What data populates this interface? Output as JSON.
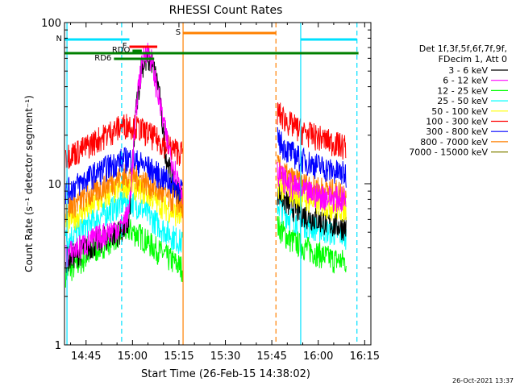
{
  "chart_data": {
    "type": "line",
    "title": "RHESSI Count Rates",
    "xlabel": "Start Time (26-Feb-15 14:38:02)",
    "ylabel": "Count Rate (s⁻¹ detector segment⁻¹)",
    "y_scale": "log",
    "ylim": [
      1,
      100
    ],
    "xlim": [
      "14:38:02",
      "16:17:00"
    ],
    "x_ticks": [
      "14:45",
      "15:00",
      "15:15",
      "15:30",
      "15:45",
      "16:00",
      "16:15"
    ],
    "y_ticks": [
      "1",
      "10",
      "100"
    ],
    "grid": false,
    "legend_position": "right",
    "legend_header": [
      "Det 1f,3f,5f,6f,7f,9f,",
      "FDecim 1, Att 0"
    ],
    "series": [
      {
        "name": "3 - 6 keV",
        "color": "#000000",
        "pre": [
          [
            14.64,
            3.4
          ],
          [
            14.72,
            3.8
          ],
          [
            14.8,
            4.3
          ],
          [
            14.88,
            4.8
          ],
          [
            14.94,
            5.1
          ],
          [
            14.98,
            5.6
          ],
          [
            15.02,
            30
          ],
          [
            15.05,
            55
          ],
          [
            15.1,
            60
          ],
          [
            15.14,
            40
          ],
          [
            15.18,
            15
          ],
          [
            15.22,
            10
          ],
          [
            15.27,
            8
          ]
        ],
        "post": [
          [
            15.78,
            9
          ],
          [
            15.84,
            7.5
          ],
          [
            15.92,
            6.5
          ],
          [
            16.0,
            6
          ],
          [
            16.08,
            5.6
          ],
          [
            16.15,
            5.4
          ]
        ]
      },
      {
        "name": "6 - 12 keV",
        "color": "#ff00ff",
        "pre": [
          [
            14.64,
            3.6
          ],
          [
            14.72,
            4.1
          ],
          [
            14.8,
            4.6
          ],
          [
            14.88,
            5.1
          ],
          [
            14.94,
            5.5
          ],
          [
            14.98,
            6.5
          ],
          [
            15.03,
            40
          ],
          [
            15.07,
            70
          ],
          [
            15.1,
            60
          ],
          [
            15.14,
            35
          ],
          [
            15.18,
            20
          ],
          [
            15.22,
            13
          ],
          [
            15.27,
            9
          ]
        ],
        "post": [
          [
            15.78,
            12
          ],
          [
            15.84,
            10
          ],
          [
            15.92,
            9
          ],
          [
            16.0,
            8.5
          ],
          [
            16.08,
            8.2
          ],
          [
            16.15,
            8
          ]
        ]
      },
      {
        "name": "12 - 25 keV",
        "color": "#00ff00",
        "pre": [
          [
            14.64,
            2.8
          ],
          [
            14.72,
            3.3
          ],
          [
            14.8,
            3.9
          ],
          [
            14.88,
            4.5
          ],
          [
            14.94,
            5
          ],
          [
            14.98,
            5.2
          ],
          [
            15.04,
            4.8
          ],
          [
            15.1,
            4.2
          ],
          [
            15.16,
            3.7
          ],
          [
            15.22,
            3.3
          ],
          [
            15.27,
            3
          ]
        ],
        "post": [
          [
            15.78,
            5.5
          ],
          [
            15.84,
            4.6
          ],
          [
            15.92,
            4.1
          ],
          [
            16.0,
            3.7
          ],
          [
            16.08,
            3.4
          ],
          [
            16.15,
            3.3
          ]
        ]
      },
      {
        "name": "25 - 50 keV",
        "color": "#00ffff",
        "pre": [
          [
            14.64,
            4.5
          ],
          [
            14.72,
            5.2
          ],
          [
            14.8,
            6
          ],
          [
            14.88,
            6.9
          ],
          [
            14.94,
            7.6
          ],
          [
            14.98,
            7.9
          ],
          [
            15.04,
            7.2
          ],
          [
            15.1,
            6.2
          ],
          [
            15.16,
            5.3
          ],
          [
            15.22,
            4.7
          ],
          [
            15.27,
            4.3
          ]
        ],
        "post": [
          [
            15.78,
            7.5
          ],
          [
            15.84,
            6.3
          ],
          [
            15.92,
            5.7
          ],
          [
            16.0,
            5.3
          ],
          [
            16.08,
            5
          ],
          [
            16.15,
            4.8
          ]
        ]
      },
      {
        "name": "50 - 100 keV",
        "color": "#ffff00",
        "pre": [
          [
            14.64,
            5.8
          ],
          [
            14.72,
            6.6
          ],
          [
            14.8,
            7.6
          ],
          [
            14.88,
            8.7
          ],
          [
            14.94,
            9.6
          ],
          [
            14.98,
            10
          ],
          [
            15.04,
            9.3
          ],
          [
            15.1,
            8.4
          ],
          [
            15.16,
            7.4
          ],
          [
            15.22,
            6.7
          ],
          [
            15.27,
            6.2
          ]
        ],
        "post": [
          [
            15.78,
            10
          ],
          [
            15.84,
            9
          ],
          [
            15.92,
            8.2
          ],
          [
            16.0,
            7.6
          ],
          [
            16.08,
            7.2
          ],
          [
            16.15,
            7
          ]
        ]
      },
      {
        "name": "100 - 300 keV",
        "color": "#ff0000",
        "pre": [
          [
            14.64,
            15
          ],
          [
            14.72,
            16.2
          ],
          [
            14.8,
            18.5
          ],
          [
            14.88,
            21
          ],
          [
            14.94,
            22.8
          ],
          [
            14.98,
            23.5
          ],
          [
            15.04,
            22
          ],
          [
            15.1,
            20
          ],
          [
            15.16,
            18
          ],
          [
            15.22,
            16.5
          ],
          [
            15.27,
            15.5
          ]
        ],
        "post": [
          [
            15.78,
            28
          ],
          [
            15.84,
            24
          ],
          [
            15.92,
            21
          ],
          [
            16.0,
            19.5
          ],
          [
            16.08,
            18
          ],
          [
            16.15,
            17
          ]
        ]
      },
      {
        "name": "300 - 800 keV",
        "color": "#0000ff",
        "pre": [
          [
            14.64,
            9
          ],
          [
            14.72,
            10.2
          ],
          [
            14.8,
            11.6
          ],
          [
            14.88,
            13
          ],
          [
            14.94,
            14
          ],
          [
            14.98,
            14.4
          ],
          [
            15.04,
            13.5
          ],
          [
            15.1,
            12.3
          ],
          [
            15.16,
            11
          ],
          [
            15.22,
            10
          ],
          [
            15.27,
            9.3
          ]
        ],
        "post": [
          [
            15.78,
            19
          ],
          [
            15.84,
            16
          ],
          [
            15.92,
            14
          ],
          [
            16.0,
            13
          ],
          [
            16.08,
            12
          ],
          [
            16.15,
            11.5
          ]
        ]
      },
      {
        "name": "800 - 7000 keV",
        "color": "#ff8000",
        "pre": [
          [
            14.64,
            7
          ],
          [
            14.72,
            7.9
          ],
          [
            14.8,
            9
          ],
          [
            14.88,
            10.2
          ],
          [
            14.94,
            11
          ],
          [
            14.98,
            11.4
          ],
          [
            15.04,
            10.8
          ],
          [
            15.1,
            9.8
          ],
          [
            15.16,
            8.7
          ],
          [
            15.22,
            7.9
          ],
          [
            15.27,
            7.4
          ]
        ],
        "post": [
          [
            15.78,
            13
          ],
          [
            15.84,
            11
          ],
          [
            15.92,
            10
          ],
          [
            16.0,
            9.5
          ],
          [
            16.08,
            9
          ],
          [
            16.15,
            8.8
          ]
        ]
      },
      {
        "name": "7000 - 15000 keV",
        "color": "#808000",
        "pre": [],
        "post": []
      }
    ],
    "gaps": [
      [
        "15:16",
        "15:46"
      ]
    ],
    "vertical_markers": [
      {
        "time": "14:38:50",
        "color": "#00e0ff",
        "style": "solid"
      },
      {
        "time": "14:56:30",
        "color": "#00e0ff",
        "style": "dashed"
      },
      {
        "time": "15:16:20",
        "color": "#ff8000",
        "style": "solid"
      },
      {
        "time": "15:46:20",
        "color": "#ff8000",
        "style": "dashed"
      },
      {
        "time": "15:54:20",
        "color": "#00e0ff",
        "style": "solid"
      },
      {
        "time": "16:12:30",
        "color": "#00e0ff",
        "style": "dashed"
      }
    ],
    "flag_bars": [
      {
        "label": "N",
        "color": "#00e0ff",
        "segments": [
          [
            "14:38:02",
            "14:59:00"
          ],
          [
            "15:54:20",
            "16:12:30"
          ]
        ]
      },
      {
        "label": "S",
        "color": "#ff8000",
        "segments": [
          [
            "15:16:20",
            "15:46:20"
          ]
        ]
      },
      {
        "label": "F",
        "color": "#ff0000",
        "segments": [
          [
            "14:59:00",
            "15:08:00"
          ]
        ]
      },
      {
        "label": "RDO",
        "color": "#008000",
        "segments": [
          [
            "15:00:00",
            "15:03:00"
          ]
        ]
      },
      {
        "label": "",
        "color": "#008000",
        "segments": [
          [
            "14:38:02",
            "16:13:00"
          ]
        ]
      },
      {
        "label": "RD6",
        "color": "#008000",
        "segments": [
          [
            "14:54:00",
            "15:07:00"
          ]
        ]
      }
    ]
  },
  "footer": {
    "timestamp": "26-Oct-2021 13:37"
  }
}
